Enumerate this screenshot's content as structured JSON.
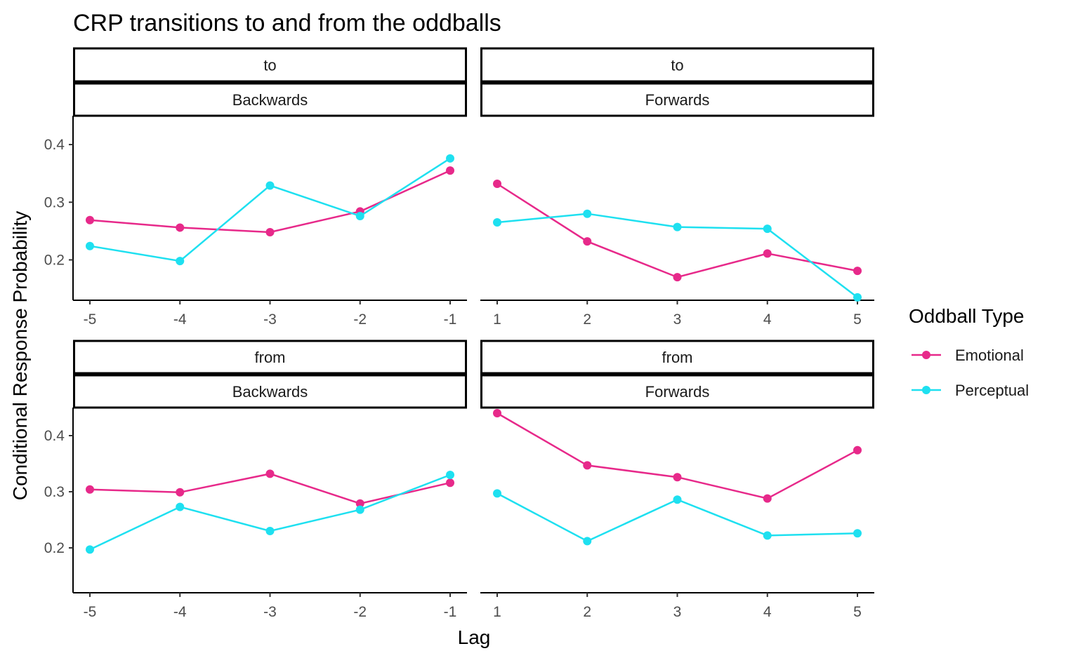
{
  "chart_data": {
    "type": "line",
    "title": "CRP transitions to and from the oddballs",
    "xlabel": "Lag",
    "ylabel": "Conditional Response Probability",
    "legend": {
      "title": "Oddball Type",
      "placement": "right",
      "entries": [
        "Emotional",
        "Perceptual"
      ]
    },
    "colors": {
      "Emotional": "#e7298a",
      "Perceptual": "#1ee0f0"
    },
    "ylim_rows": [
      [
        0.13,
        0.45
      ],
      [
        0.12,
        0.45
      ]
    ],
    "yticks": [
      0.2,
      0.3,
      0.4
    ],
    "ytick_labels": [
      "0.2",
      "0.3",
      "0.4"
    ],
    "panels": [
      {
        "strip_top": "to",
        "strip_bottom": "Backwards",
        "x": [
          -5,
          -4,
          -3,
          -2,
          -1
        ],
        "x_labels": [
          "-5",
          "-4",
          "-3",
          "-2",
          "-1"
        ],
        "series": [
          {
            "name": "Emotional",
            "values": [
              0.269,
              0.256,
              0.248,
              0.284,
              0.355
            ]
          },
          {
            "name": "Perceptual",
            "values": [
              0.224,
              0.198,
              0.329,
              0.276,
              0.376
            ]
          }
        ]
      },
      {
        "strip_top": "to",
        "strip_bottom": "Forwards",
        "x": [
          1,
          2,
          3,
          4,
          5
        ],
        "x_labels": [
          "1",
          "2",
          "3",
          "4",
          "5"
        ],
        "series": [
          {
            "name": "Emotional",
            "values": [
              0.332,
              0.232,
              0.17,
              0.211,
              0.181
            ]
          },
          {
            "name": "Perceptual",
            "values": [
              0.265,
              0.28,
              0.257,
              0.254,
              0.135
            ]
          }
        ]
      },
      {
        "strip_top": "from",
        "strip_bottom": "Backwards",
        "x": [
          -5,
          -4,
          -3,
          -2,
          -1
        ],
        "x_labels": [
          "-5",
          "-4",
          "-3",
          "-2",
          "-1"
        ],
        "series": [
          {
            "name": "Emotional",
            "values": [
              0.304,
              0.299,
              0.332,
              0.279,
              0.316
            ]
          },
          {
            "name": "Perceptual",
            "values": [
              0.197,
              0.273,
              0.23,
              0.268,
              0.33
            ]
          }
        ]
      },
      {
        "strip_top": "from",
        "strip_bottom": "Forwards",
        "x": [
          1,
          2,
          3,
          4,
          5
        ],
        "x_labels": [
          "1",
          "2",
          "3",
          "4",
          "5"
        ],
        "series": [
          {
            "name": "Emotional",
            "values": [
              0.44,
              0.347,
              0.326,
              0.288,
              0.374
            ]
          },
          {
            "name": "Perceptual",
            "values": [
              0.297,
              0.212,
              0.286,
              0.222,
              0.226
            ]
          }
        ]
      }
    ]
  }
}
